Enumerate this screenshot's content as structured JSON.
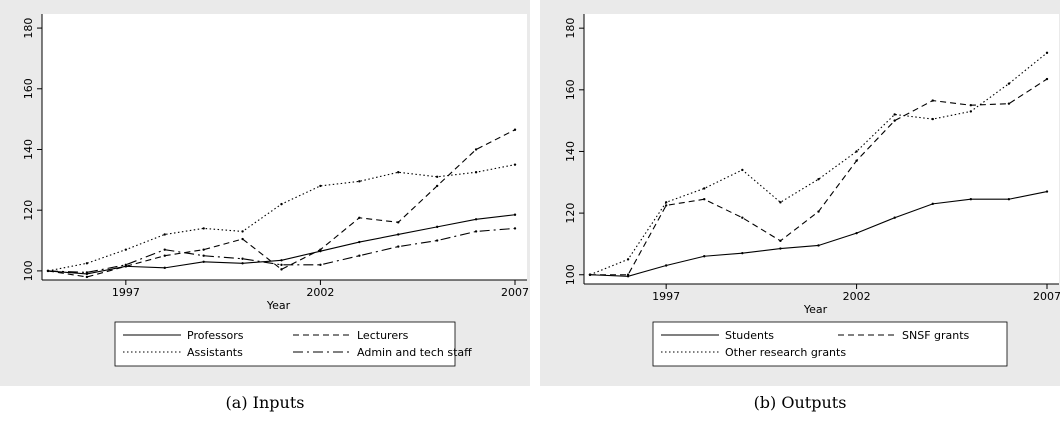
{
  "chart_data": [
    {
      "type": "line",
      "caption": "(a) Inputs",
      "xlabel": "Year",
      "x": [
        1995,
        1996,
        1997,
        1998,
        1999,
        2000,
        2001,
        2002,
        2003,
        2004,
        2005,
        2006,
        2007
      ],
      "xlim": [
        1995,
        2007
      ],
      "xticks": [
        1997,
        2002,
        2007
      ],
      "ylim": [
        97,
        182
      ],
      "yticks": [
        100,
        120,
        140,
        160,
        180
      ],
      "series": [
        {
          "name": "Professors",
          "color": "#000000",
          "dash": "none",
          "values": [
            100,
            99,
            101.5,
            101,
            103,
            102.5,
            103.5,
            106.5,
            109.5,
            112,
            114.5,
            117,
            118.5
          ]
        },
        {
          "name": "Lecturers",
          "color": "#000000",
          "dash": "6,4",
          "values": [
            100,
            98,
            101.5,
            105,
            107,
            110.5,
            100.5,
            107,
            117.5,
            116,
            128,
            140,
            146.5
          ]
        },
        {
          "name": "Assistants",
          "color": "#000000",
          "dash": "1.5,2.5",
          "values": [
            100,
            102.5,
            107,
            112,
            114,
            113,
            122,
            128,
            129.5,
            132.5,
            131,
            132.5,
            135
          ]
        },
        {
          "name": "Admin and tech staff",
          "color": "#000000",
          "dash": "10,4,2,4",
          "values": [
            100,
            99.5,
            102,
            107,
            105,
            104,
            102,
            102,
            105,
            108,
            110,
            113,
            114
          ]
        }
      ]
    },
    {
      "type": "line",
      "caption": "(b) Outputs",
      "xlabel": "Year",
      "x": [
        1995,
        1996,
        1997,
        1998,
        1999,
        2000,
        2001,
        2002,
        2003,
        2004,
        2005,
        2006,
        2007
      ],
      "xlim": [
        1995,
        2007
      ],
      "xticks": [
        1997,
        2002,
        2007
      ],
      "ylim": [
        97,
        182
      ],
      "yticks": [
        100,
        120,
        140,
        160,
        180
      ],
      "series": [
        {
          "name": "Students",
          "color": "#000000",
          "dash": "none",
          "values": [
            100,
            99.5,
            103,
            106,
            107,
            108.5,
            109.5,
            113.5,
            118.5,
            123,
            124.5,
            124.5,
            127
          ]
        },
        {
          "name": "SNSF grants",
          "color": "#000000",
          "dash": "6,4",
          "values": [
            100,
            100,
            122.5,
            124.5,
            118.5,
            111,
            120.5,
            137,
            150,
            156.5,
            155,
            155.5,
            163.5
          ]
        },
        {
          "name": "Other research grants",
          "color": "#000000",
          "dash": "1.5,2.5",
          "values": [
            100,
            105,
            123.5,
            128,
            134,
            123.5,
            131,
            140,
            152,
            150.5,
            153,
            162,
            172
          ]
        }
      ]
    }
  ]
}
